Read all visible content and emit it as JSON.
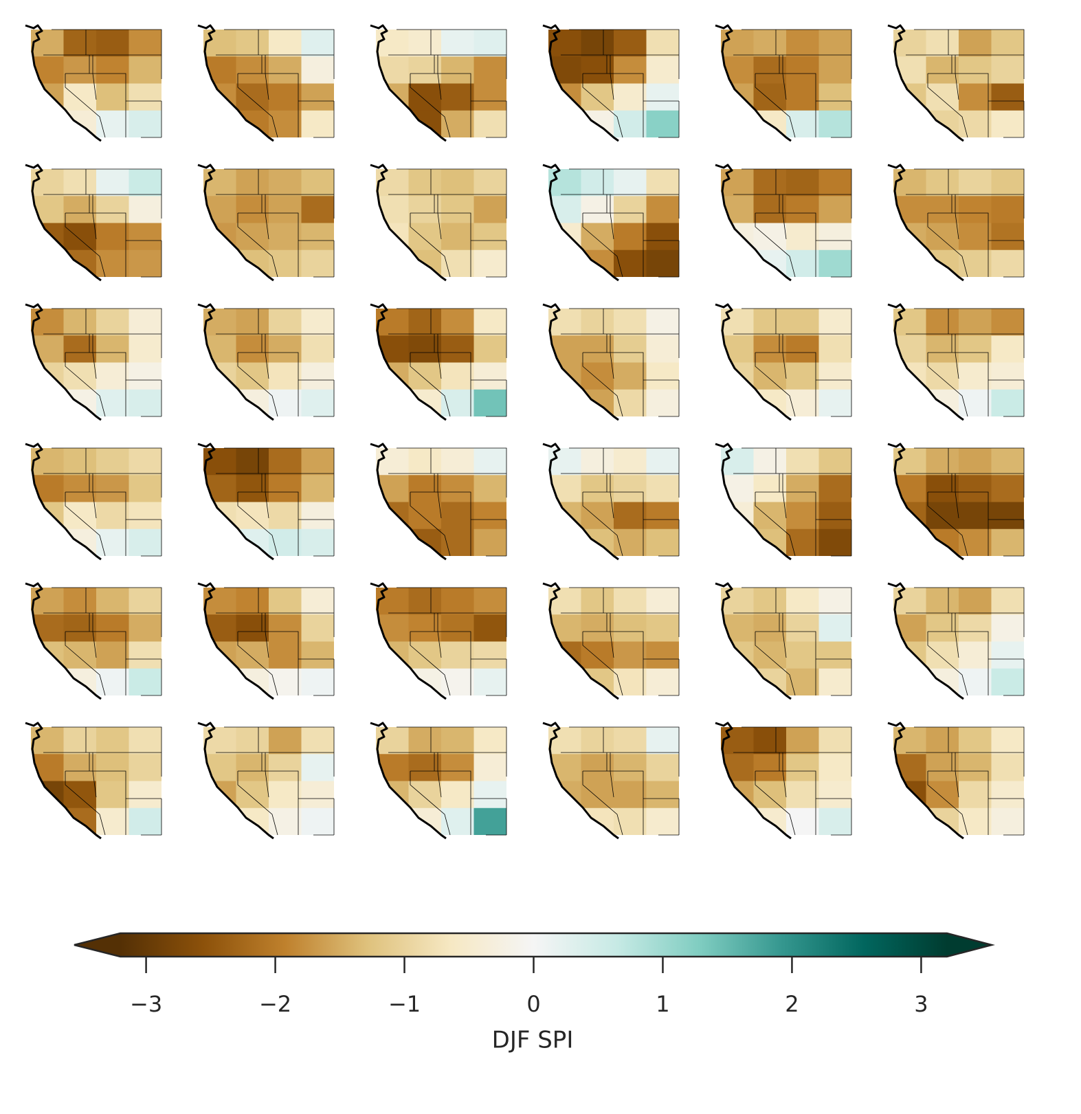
{
  "chart_data": {
    "type": "heatmap-panels",
    "colormap": [
      "#543005",
      "#8c510a",
      "#bf812d",
      "#dfc27d",
      "#f6e8c3",
      "#f5f5f5",
      "#c7eae5",
      "#80cdc1",
      "#35978f",
      "#01665e",
      "#003c30"
    ],
    "colorbar": {
      "label": "DJF SPI",
      "lim": [
        -3.2,
        3.2
      ],
      "ticks": [
        {
          "value": -3,
          "label": "−3"
        },
        {
          "value": -2,
          "label": "−2"
        },
        {
          "value": -1,
          "label": "−1"
        },
        0,
        1,
        2,
        3
      ]
    },
    "panels": [
      [
        [
          -1.5,
          -2.3,
          -2.4,
          -1.8
        ],
        [
          -1.9,
          -1.7,
          -1.9,
          -1.4
        ],
        [
          -1.6,
          -0.6,
          -1.3,
          -0.8
        ],
        [
          -1.2,
          -0.4,
          0.2,
          0.4
        ]
      ],
      [
        [
          -1.3,
          -1.2,
          -0.6,
          0.3
        ],
        [
          -2.0,
          -1.8,
          -1.5,
          -0.3
        ],
        [
          -1.8,
          -2.2,
          -2.0,
          -1.6
        ],
        [
          -1.2,
          -2.0,
          -1.8,
          -0.6
        ]
      ],
      [
        [
          -0.6,
          -0.5,
          0.2,
          0.3
        ],
        [
          -0.9,
          -1.0,
          -1.4,
          -1.8
        ],
        [
          -1.5,
          -2.6,
          -2.4,
          -1.8
        ],
        [
          -1.8,
          -2.6,
          -1.5,
          -0.8
        ]
      ],
      [
        [
          -2.6,
          -2.8,
          -2.4,
          -0.8
        ],
        [
          -2.7,
          -2.6,
          -1.8,
          -0.5
        ],
        [
          -1.8,
          -1.2,
          -0.5,
          0.2
        ],
        [
          -0.6,
          -0.2,
          0.5,
          1.2
        ]
      ],
      [
        [
          -1.6,
          -1.5,
          -1.8,
          -1.6
        ],
        [
          -1.8,
          -2.2,
          -2.0,
          -1.6
        ],
        [
          -1.6,
          -2.3,
          -2.0,
          -1.3
        ],
        [
          -1.0,
          -0.6,
          0.4,
          0.8
        ]
      ],
      [
        [
          -1.0,
          -0.8,
          -1.6,
          -1.2
        ],
        [
          -0.8,
          -1.4,
          -1.2,
          -1.0
        ],
        [
          -1.2,
          -0.8,
          -1.8,
          -2.4
        ],
        [
          -1.3,
          -1.0,
          -0.9,
          -0.6
        ]
      ],
      [
        [
          -1.0,
          -0.8,
          0.2,
          0.6
        ],
        [
          -1.2,
          -1.5,
          -1.0,
          -0.3
        ],
        [
          -2.4,
          -2.6,
          -2.0,
          -1.8
        ],
        [
          -2.8,
          -2.2,
          -1.8,
          -1.7
        ]
      ],
      [
        [
          -1.4,
          -1.6,
          -1.5,
          -1.3
        ],
        [
          -1.6,
          -1.8,
          -1.6,
          -2.2
        ],
        [
          -1.7,
          -1.6,
          -1.5,
          -1.4
        ],
        [
          -1.5,
          -1.3,
          -1.2,
          -1.0
        ]
      ],
      [
        [
          -0.9,
          -1.2,
          -1.3,
          -1.0
        ],
        [
          -0.8,
          -1.0,
          -1.2,
          -1.6
        ],
        [
          -0.7,
          -1.2,
          -1.4,
          -1.2
        ],
        [
          -1.5,
          -1.3,
          -0.8,
          -0.5
        ]
      ],
      [
        [
          0.8,
          0.5,
          0.2,
          -0.8
        ],
        [
          0.4,
          -0.2,
          -1.0,
          -1.8
        ],
        [
          -0.5,
          -1.5,
          -2.0,
          -2.6
        ],
        [
          -1.2,
          -1.8,
          -2.6,
          -2.8
        ]
      ],
      [
        [
          -1.6,
          -2.2,
          -2.3,
          -2.0
        ],
        [
          -1.5,
          -2.2,
          -2.0,
          -1.6
        ],
        [
          -0.3,
          -0.2,
          -0.5,
          -0.3
        ],
        [
          0.3,
          0.2,
          0.5,
          1.0
        ]
      ],
      [
        [
          -1.4,
          -1.2,
          -1.0,
          -1.2
        ],
        [
          -1.8,
          -1.8,
          -1.9,
          -2.0
        ],
        [
          -1.5,
          -1.6,
          -1.8,
          -2.1
        ],
        [
          -1.3,
          -1.2,
          -1.1,
          -0.9
        ]
      ],
      [
        [
          -1.8,
          -1.4,
          -1.0,
          -0.4
        ],
        [
          -1.5,
          -2.2,
          -1.4,
          -0.5
        ],
        [
          -1.0,
          -0.8,
          -0.4,
          -0.2
        ],
        [
          -0.5,
          -0.2,
          0.3,
          0.4
        ]
      ],
      [
        [
          -1.5,
          -1.6,
          -1.0,
          -0.5
        ],
        [
          -1.4,
          -1.8,
          -1.5,
          -0.8
        ],
        [
          -1.0,
          -1.2,
          -0.7,
          -0.3
        ],
        [
          -0.5,
          -0.3,
          0.1,
          0.3
        ]
      ],
      [
        [
          -2.0,
          -2.3,
          -1.8,
          -0.6
        ],
        [
          -2.6,
          -2.7,
          -2.4,
          -1.2
        ],
        [
          -1.5,
          -1.2,
          -0.7,
          -0.4
        ],
        [
          -0.8,
          -0.5,
          0.4,
          1.4
        ]
      ],
      [
        [
          -0.8,
          -1.0,
          -0.8,
          -0.2
        ],
        [
          -1.6,
          -1.6,
          -1.1,
          -0.4
        ],
        [
          -1.6,
          -1.8,
          -1.5,
          -0.6
        ],
        [
          -1.8,
          -1.6,
          -0.9,
          -0.3
        ]
      ],
      [
        [
          -0.8,
          -1.2,
          -1.2,
          -0.5
        ],
        [
          -1.2,
          -1.8,
          -2.0,
          -0.8
        ],
        [
          -1.0,
          -1.4,
          -1.2,
          -0.5
        ],
        [
          -0.6,
          -0.6,
          -0.4,
          0.2
        ]
      ],
      [
        [
          -1.2,
          -1.8,
          -1.6,
          -1.8
        ],
        [
          -1.0,
          -1.4,
          -1.2,
          -0.6
        ],
        [
          -0.7,
          -0.9,
          -0.5,
          -0.4
        ],
        [
          -0.4,
          -0.3,
          0.1,
          0.6
        ]
      ],
      [
        [
          -1.4,
          -1.3,
          -1.1,
          -0.9
        ],
        [
          -2.0,
          -1.8,
          -1.7,
          -1.2
        ],
        [
          -1.2,
          -0.6,
          -0.9,
          -0.7
        ],
        [
          -0.4,
          -0.3,
          0.2,
          0.4
        ]
      ],
      [
        [
          -2.6,
          -2.8,
          -2.2,
          -1.6
        ],
        [
          -2.3,
          -2.5,
          -2.0,
          -1.4
        ],
        [
          -0.8,
          -0.7,
          -0.9,
          -0.3
        ],
        [
          -0.2,
          0.3,
          0.5,
          0.4
        ]
      ],
      [
        [
          -0.4,
          -0.6,
          -0.4,
          0.2
        ],
        [
          -1.6,
          -2.0,
          -1.8,
          -1.4
        ],
        [
          -2.2,
          -2.0,
          -2.2,
          -1.9
        ],
        [
          -2.0,
          -2.4,
          -2.2,
          -1.6
        ]
      ],
      [
        [
          0.2,
          -0.3,
          -0.5,
          0.2
        ],
        [
          -0.8,
          -1.2,
          -1.0,
          -0.8
        ],
        [
          -1.4,
          -1.6,
          -2.2,
          -2.0
        ],
        [
          -1.2,
          -1.3,
          -1.5,
          -1.3
        ]
      ],
      [
        [
          0.4,
          -0.2,
          -0.8,
          -1.2
        ],
        [
          -0.2,
          -0.6,
          -1.5,
          -2.2
        ],
        [
          -0.4,
          -1.4,
          -1.8,
          -2.4
        ],
        [
          -0.6,
          -1.3,
          -2.2,
          -2.7
        ]
      ],
      [
        [
          -1.2,
          -1.5,
          -1.6,
          -1.4
        ],
        [
          -2.0,
          -2.6,
          -2.4,
          -2.2
        ],
        [
          -2.3,
          -2.8,
          -2.8,
          -2.8
        ],
        [
          -1.6,
          -2.0,
          -1.8,
          -1.4
        ]
      ],
      [
        [
          -1.6,
          -1.8,
          -1.4,
          -1.0
        ],
        [
          -2.2,
          -2.3,
          -2.0,
          -1.5
        ],
        [
          -1.3,
          -1.4,
          -1.6,
          -0.8
        ],
        [
          -0.6,
          -0.3,
          0.1,
          0.6
        ]
      ],
      [
        [
          -1.8,
          -1.9,
          -1.2,
          -0.4
        ],
        [
          -2.4,
          -2.6,
          -1.8,
          -1.0
        ],
        [
          -1.6,
          -1.5,
          -1.8,
          -1.4
        ],
        [
          -0.6,
          -0.3,
          -0.1,
          0.1
        ]
      ],
      [
        [
          -2.0,
          -2.2,
          -2.0,
          -1.8
        ],
        [
          -1.8,
          -1.9,
          -2.1,
          -2.5
        ],
        [
          -1.4,
          -1.2,
          -1.0,
          -0.9
        ],
        [
          -0.5,
          -0.2,
          -0.1,
          0.2
        ]
      ],
      [
        [
          -0.8,
          -1.2,
          -0.8,
          -0.4
        ],
        [
          -1.4,
          -1.5,
          -1.3,
          -1.2
        ],
        [
          -2.2,
          -2.0,
          -1.7,
          -1.8
        ],
        [
          -1.5,
          -1.2,
          -0.7,
          -0.4
        ]
      ],
      [
        [
          -1.0,
          -1.2,
          -0.6,
          -0.2
        ],
        [
          -1.4,
          -1.5,
          -1.0,
          0.3
        ],
        [
          -1.2,
          -1.4,
          -1.2,
          -1.2
        ],
        [
          -0.7,
          -1.0,
          -1.4,
          -0.5
        ]
      ],
      [
        [
          -1.0,
          -1.4,
          -1.6,
          -0.8
        ],
        [
          -1.6,
          -1.2,
          -0.9,
          -0.2
        ],
        [
          -1.2,
          -0.8,
          -0.4,
          0.2
        ],
        [
          -0.6,
          -0.3,
          0.1,
          0.6
        ]
      ],
      [
        [
          -1.4,
          -1.0,
          -1.2,
          -0.8
        ],
        [
          -2.0,
          -1.5,
          -1.3,
          -1.0
        ],
        [
          -2.8,
          -2.5,
          -1.2,
          -0.5
        ],
        [
          -2.8,
          -2.2,
          -0.5,
          0.5
        ]
      ],
      [
        [
          -0.9,
          -1.0,
          -1.6,
          -0.8
        ],
        [
          -1.2,
          -1.4,
          -1.0,
          0.2
        ],
        [
          -1.6,
          -1.2,
          -0.6,
          -0.4
        ],
        [
          -1.0,
          -0.6,
          -0.2,
          0.1
        ]
      ],
      [
        [
          -1.0,
          -1.5,
          -1.4,
          -0.6
        ],
        [
          -2.0,
          -2.2,
          -1.8,
          -0.4
        ],
        [
          -1.4,
          -1.0,
          -0.6,
          0.2
        ],
        [
          -0.8,
          -0.4,
          0.3,
          1.8
        ]
      ],
      [
        [
          -0.8,
          -1.0,
          -0.9,
          0.2
        ],
        [
          -1.4,
          -1.6,
          -1.4,
          -1.0
        ],
        [
          -1.5,
          -1.6,
          -1.6,
          -1.4
        ],
        [
          -1.0,
          -0.7,
          -0.8,
          -0.5
        ]
      ],
      [
        [
          -2.4,
          -2.6,
          -1.6,
          -0.8
        ],
        [
          -2.2,
          -2.0,
          -1.2,
          -0.6
        ],
        [
          -1.6,
          -1.3,
          -0.8,
          -0.5
        ],
        [
          -0.8,
          -0.5,
          0.0,
          0.4
        ]
      ],
      [
        [
          -1.4,
          -1.6,
          -1.2,
          -0.6
        ],
        [
          -2.2,
          -1.6,
          -1.4,
          -0.8
        ],
        [
          -2.6,
          -1.8,
          -0.9,
          -0.5
        ],
        [
          -2.2,
          -1.0,
          -0.6,
          -0.3
        ]
      ]
    ]
  }
}
